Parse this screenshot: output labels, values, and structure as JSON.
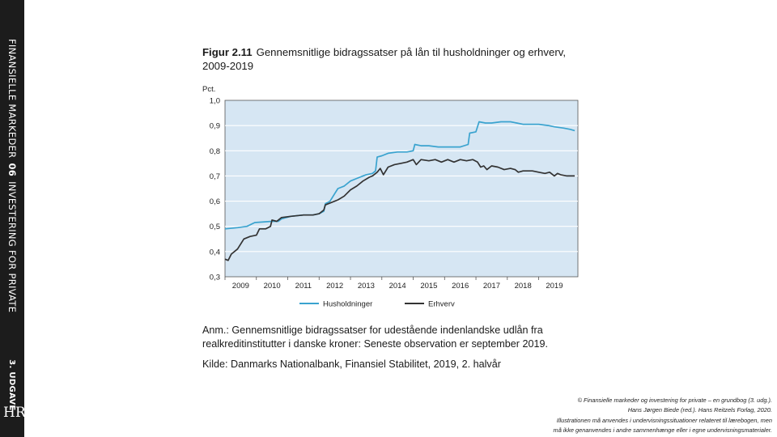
{
  "sidebar": {
    "series_title": "FINANSIELLE MARKEDER",
    "chapter": "06",
    "series_subtitle": "INVESTERING FOR PRIVATE",
    "edition": "3. UDGAVE",
    "logo_text": "HR"
  },
  "figure": {
    "number": "Figur 2.11",
    "title": "Gennemsnitlige bidragssatser på lån til husholdninger og erhverv, 2009-2019",
    "note": "Anm.: Gennemsnitlige bidragssatser for udestående indenlandske udlån fra realkreditinstitutter i danske kroner: Seneste observation er september 2019.",
    "source": "Kilde: Danmarks Nationalbank, Finansiel Stabilitet, 2019, 2. halvår"
  },
  "copyright": {
    "line1": "© Finansielle markeder og investering for private – en grundbog (3. udg.).",
    "line2": "Hans Jørgen Biede (red.). Hans Reitzels Forlag, 2020.",
    "line3": "Illustrationen må anvendes i undervisningssituationer relateret til lærebogen, men",
    "line4": "må ikke genanvendes i andre sammenhænge eller i egne undervisningsmaterialer."
  },
  "chart_data": {
    "type": "line",
    "ylabel": "Pct.",
    "ylim": [
      0.3,
      1.0
    ],
    "yticks": [
      "1,0",
      "0,9",
      "0,8",
      "0,7",
      "0,6",
      "0,5",
      "0,4",
      "0,3"
    ],
    "xlim": [
      2008.5,
      2019.75
    ],
    "xticks": [
      "2009",
      "2010",
      "2011",
      "2012",
      "2013",
      "2014",
      "2015",
      "2016",
      "2017",
      "2018",
      "2019"
    ],
    "grid": true,
    "legend_position": "bottom",
    "background": "#d6e6f3",
    "series": [
      {
        "name": "Husholdninger",
        "color": "#3aa3cf",
        "points": [
          [
            2008.5,
            0.49
          ],
          [
            2008.9,
            0.495
          ],
          [
            2009.2,
            0.5
          ],
          [
            2009.45,
            0.515
          ],
          [
            2010.0,
            0.52
          ],
          [
            2010.2,
            0.52
          ],
          [
            2010.3,
            0.53
          ],
          [
            2010.6,
            0.54
          ],
          [
            2011.0,
            0.545
          ],
          [
            2011.3,
            0.545
          ],
          [
            2011.5,
            0.55
          ],
          [
            2011.65,
            0.56
          ],
          [
            2011.7,
            0.59
          ],
          [
            2011.85,
            0.6
          ],
          [
            2012.0,
            0.63
          ],
          [
            2012.1,
            0.65
          ],
          [
            2012.3,
            0.66
          ],
          [
            2012.5,
            0.68
          ],
          [
            2012.7,
            0.69
          ],
          [
            2012.9,
            0.7
          ],
          [
            2013.0,
            0.705
          ],
          [
            2013.2,
            0.71
          ],
          [
            2013.3,
            0.72
          ],
          [
            2013.35,
            0.775
          ],
          [
            2013.5,
            0.78
          ],
          [
            2013.7,
            0.79
          ],
          [
            2014.0,
            0.795
          ],
          [
            2014.3,
            0.795
          ],
          [
            2014.5,
            0.8
          ],
          [
            2014.55,
            0.825
          ],
          [
            2014.75,
            0.82
          ],
          [
            2015.0,
            0.82
          ],
          [
            2015.3,
            0.815
          ],
          [
            2015.6,
            0.815
          ],
          [
            2016.0,
            0.815
          ],
          [
            2016.25,
            0.825
          ],
          [
            2016.3,
            0.87
          ],
          [
            2016.5,
            0.875
          ],
          [
            2016.6,
            0.915
          ],
          [
            2016.8,
            0.91
          ],
          [
            2017.0,
            0.91
          ],
          [
            2017.3,
            0.915
          ],
          [
            2017.6,
            0.915
          ],
          [
            2017.8,
            0.91
          ],
          [
            2018.0,
            0.905
          ],
          [
            2018.2,
            0.905
          ],
          [
            2018.5,
            0.905
          ],
          [
            2018.8,
            0.9
          ],
          [
            2019.0,
            0.895
          ],
          [
            2019.3,
            0.89
          ],
          [
            2019.5,
            0.885
          ],
          [
            2019.65,
            0.88
          ]
        ]
      },
      {
        "name": "Erhverv",
        "color": "#333333",
        "points": [
          [
            2008.5,
            0.37
          ],
          [
            2008.6,
            0.365
          ],
          [
            2008.7,
            0.39
          ],
          [
            2008.9,
            0.41
          ],
          [
            2009.1,
            0.45
          ],
          [
            2009.3,
            0.46
          ],
          [
            2009.5,
            0.465
          ],
          [
            2009.6,
            0.49
          ],
          [
            2009.8,
            0.49
          ],
          [
            2009.95,
            0.5
          ],
          [
            2010.0,
            0.525
          ],
          [
            2010.15,
            0.52
          ],
          [
            2010.3,
            0.535
          ],
          [
            2010.6,
            0.54
          ],
          [
            2011.0,
            0.545
          ],
          [
            2011.3,
            0.545
          ],
          [
            2011.5,
            0.55
          ],
          [
            2011.65,
            0.565
          ],
          [
            2011.7,
            0.585
          ],
          [
            2011.9,
            0.595
          ],
          [
            2012.1,
            0.605
          ],
          [
            2012.3,
            0.62
          ],
          [
            2012.5,
            0.645
          ],
          [
            2012.7,
            0.66
          ],
          [
            2012.9,
            0.68
          ],
          [
            2013.1,
            0.695
          ],
          [
            2013.2,
            0.7
          ],
          [
            2013.35,
            0.715
          ],
          [
            2013.45,
            0.73
          ],
          [
            2013.55,
            0.705
          ],
          [
            2013.7,
            0.735
          ],
          [
            2013.9,
            0.745
          ],
          [
            2014.1,
            0.75
          ],
          [
            2014.3,
            0.755
          ],
          [
            2014.5,
            0.765
          ],
          [
            2014.6,
            0.745
          ],
          [
            2014.75,
            0.765
          ],
          [
            2015.0,
            0.76
          ],
          [
            2015.2,
            0.765
          ],
          [
            2015.4,
            0.755
          ],
          [
            2015.6,
            0.765
          ],
          [
            2015.8,
            0.755
          ],
          [
            2016.0,
            0.765
          ],
          [
            2016.2,
            0.76
          ],
          [
            2016.4,
            0.765
          ],
          [
            2016.55,
            0.755
          ],
          [
            2016.65,
            0.735
          ],
          [
            2016.75,
            0.74
          ],
          [
            2016.85,
            0.725
          ],
          [
            2017.0,
            0.74
          ],
          [
            2017.2,
            0.735
          ],
          [
            2017.4,
            0.725
          ],
          [
            2017.6,
            0.73
          ],
          [
            2017.75,
            0.725
          ],
          [
            2017.85,
            0.715
          ],
          [
            2018.0,
            0.72
          ],
          [
            2018.3,
            0.72
          ],
          [
            2018.5,
            0.715
          ],
          [
            2018.7,
            0.71
          ],
          [
            2018.85,
            0.715
          ],
          [
            2019.0,
            0.7
          ],
          [
            2019.1,
            0.71
          ],
          [
            2019.2,
            0.705
          ],
          [
            2019.4,
            0.7
          ],
          [
            2019.65,
            0.7
          ]
        ]
      }
    ]
  }
}
